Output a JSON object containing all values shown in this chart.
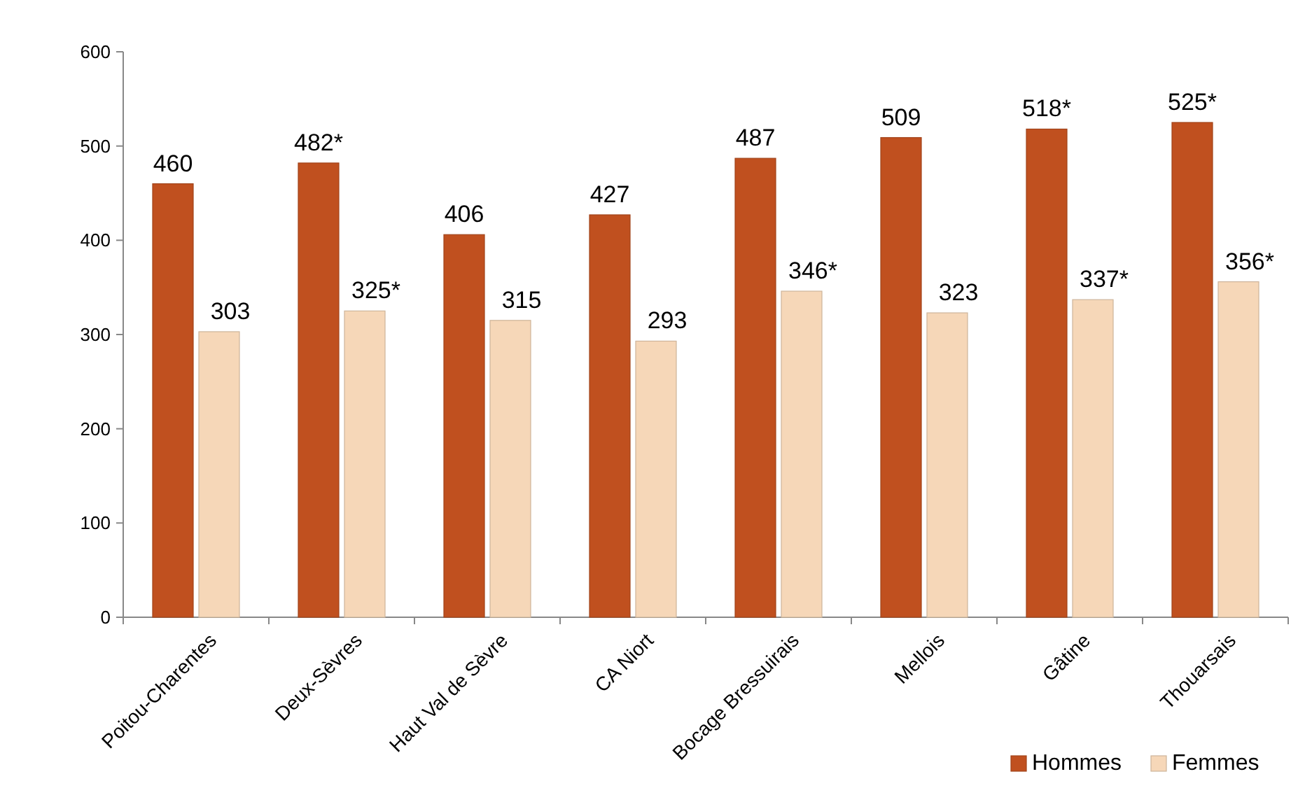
{
  "chart_data": {
    "type": "bar",
    "categories": [
      "Poitou-Charentes",
      "Deux-Sèvres",
      "Haut Val de Sèvre",
      "CA Niort",
      "Bocage Bressuirais",
      "Mellois",
      "Gâtine",
      "Thouarsais"
    ],
    "series": [
      {
        "name": "Hommes",
        "color": "#c0501f",
        "values": [
          460,
          482,
          406,
          427,
          487,
          509,
          518,
          525
        ],
        "value_labels": [
          "460",
          "482*",
          "406",
          "427",
          "487",
          "509",
          "518*",
          "525*"
        ]
      },
      {
        "name": "Femmes",
        "color": "#f6d7b8",
        "values": [
          303,
          325,
          315,
          293,
          346,
          323,
          337,
          356
        ],
        "value_labels": [
          "303",
          "325*",
          "315",
          "293",
          "346*",
          "323",
          "337*",
          "356*"
        ]
      }
    ],
    "ylim": [
      0,
      600
    ],
    "yticks": [
      0,
      100,
      200,
      300,
      400,
      500,
      600
    ],
    "grid": false,
    "legend": "bottom right"
  }
}
